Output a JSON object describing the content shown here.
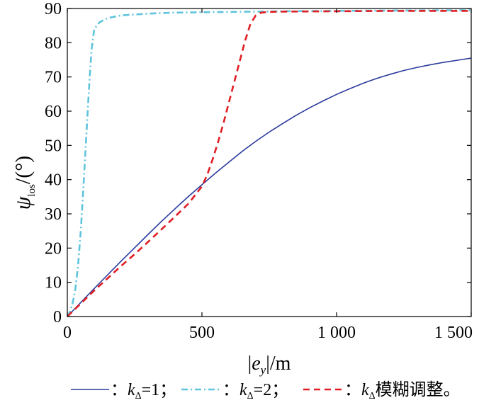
{
  "chart_data": {
    "type": "line",
    "xlim": [
      0,
      1500
    ],
    "ylim": [
      0,
      90
    ],
    "x_ticks": [
      {
        "value": 0,
        "label": "0"
      },
      {
        "value": 500,
        "label": "500"
      },
      {
        "value": 1000,
        "label": "1 000"
      },
      {
        "value": 1500,
        "label": "1 500"
      }
    ],
    "y_ticks": [
      {
        "value": 0,
        "label": "0"
      },
      {
        "value": 10,
        "label": "10"
      },
      {
        "value": 20,
        "label": "20"
      },
      {
        "value": 30,
        "label": "30"
      },
      {
        "value": 40,
        "label": "40"
      },
      {
        "value": 50,
        "label": "50"
      },
      {
        "value": 60,
        "label": "60"
      },
      {
        "value": 70,
        "label": "70"
      },
      {
        "value": 80,
        "label": "80"
      },
      {
        "value": 90,
        "label": "90"
      }
    ],
    "xlabel": {
      "bar_left": "|",
      "symbol": "e",
      "subscript": "y",
      "bar_right": "|",
      "unit": "/m"
    },
    "ylabel": {
      "symbol": "ψ",
      "subscript": "los",
      "unit": "/(°)"
    },
    "grid": false,
    "legend_position": "bottom",
    "series": [
      {
        "name": "k_Δ=1",
        "legend": {
          "prefix": "：",
          "symbol": "k",
          "subscript": "Δ",
          "suffix": "=1；"
        },
        "color": "#2a3a9c",
        "style": "solid",
        "x": [
          0,
          50,
          100,
          150,
          200,
          250,
          300,
          350,
          400,
          450,
          500,
          550,
          600,
          650,
          700,
          750,
          800,
          850,
          900,
          950,
          1000,
          1050,
          1100,
          1150,
          1200,
          1250,
          1300,
          1350,
          1400,
          1450,
          1500
        ],
        "y": [
          0,
          4.1,
          8.2,
          12.2,
          16.2,
          20.1,
          24.0,
          27.8,
          31.5,
          35.1,
          38.5,
          41.9,
          45.1,
          48.3,
          51.2,
          53.9,
          56.4,
          58.8,
          61.0,
          63.0,
          64.9,
          66.6,
          68.2,
          69.6,
          70.8,
          71.9,
          72.8,
          73.6,
          74.3,
          74.9,
          75.5
        ]
      },
      {
        "name": "k_Δ=2",
        "legend": {
          "prefix": "：",
          "symbol": "k",
          "subscript": "Δ",
          "suffix": "=2；"
        },
        "color": "#5fc4dc",
        "style": "dashdot",
        "x": [
          0,
          10,
          20,
          30,
          40,
          50,
          60,
          70,
          80,
          90,
          100,
          120,
          150,
          200,
          300,
          400,
          500,
          600,
          700,
          800,
          1000,
          1200,
          1500
        ],
        "y": [
          0,
          1.5,
          4,
          8,
          15,
          25,
          38,
          52,
          66,
          78,
          84,
          86,
          87.2,
          88.0,
          88.5,
          88.8,
          88.9,
          89.0,
          89.1,
          89.2,
          89.3,
          89.4,
          89.5
        ]
      },
      {
        "name": "k_Δ模糊调整。",
        "legend": {
          "prefix": "：",
          "symbol": "k",
          "subscript": "Δ",
          "suffix": "模糊调整。"
        },
        "color": "#e01e24",
        "style": "dashed",
        "x": [
          0,
          50,
          100,
          150,
          200,
          250,
          300,
          350,
          400,
          450,
          500,
          520,
          540,
          560,
          580,
          600,
          620,
          640,
          660,
          680,
          700,
          720,
          750,
          800,
          1000,
          1200,
          1500
        ],
        "y": [
          0,
          3.8,
          7.6,
          11.2,
          14.8,
          18.2,
          21.8,
          25.5,
          29.2,
          33.0,
          38.0,
          41.5,
          46.0,
          51.0,
          56.5,
          62.5,
          68.5,
          74.5,
          80.5,
          85.5,
          88.0,
          88.8,
          89.0,
          89.1,
          89.2,
          89.3,
          89.3
        ]
      }
    ]
  }
}
